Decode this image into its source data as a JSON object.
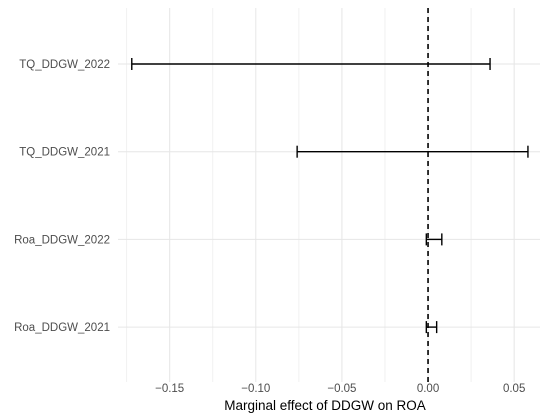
{
  "chart_data": {
    "type": "errorbar",
    "orientation": "horizontal",
    "title": "",
    "xlabel": "Marginal effect of DDGW on ROA",
    "ylabel": "",
    "xlim": [
      -0.18,
      0.065
    ],
    "x_ticks": [
      -0.15,
      -0.1,
      -0.05,
      0.0,
      0.05
    ],
    "x_tick_labels": [
      "−0.15",
      "−0.10",
      "−0.05",
      "0.00",
      "0.05"
    ],
    "categories": [
      "TQ_DDGW_2022",
      "TQ_DDGW_2021",
      "Roa_DDGW_2022",
      "Roa_DDGW_2021"
    ],
    "intervals": [
      {
        "label": "TQ_DDGW_2022",
        "lower": -0.172,
        "upper": 0.036
      },
      {
        "label": "TQ_DDGW_2021",
        "lower": -0.076,
        "upper": 0.058
      },
      {
        "label": "Roa_DDGW_2022",
        "lower": -0.001,
        "upper": 0.008
      },
      {
        "label": "Roa_DDGW_2021",
        "lower": -0.001,
        "upper": 0.005
      }
    ],
    "reference_line": {
      "x": 0,
      "style": "dashed"
    },
    "grid": true,
    "legend": "none"
  }
}
